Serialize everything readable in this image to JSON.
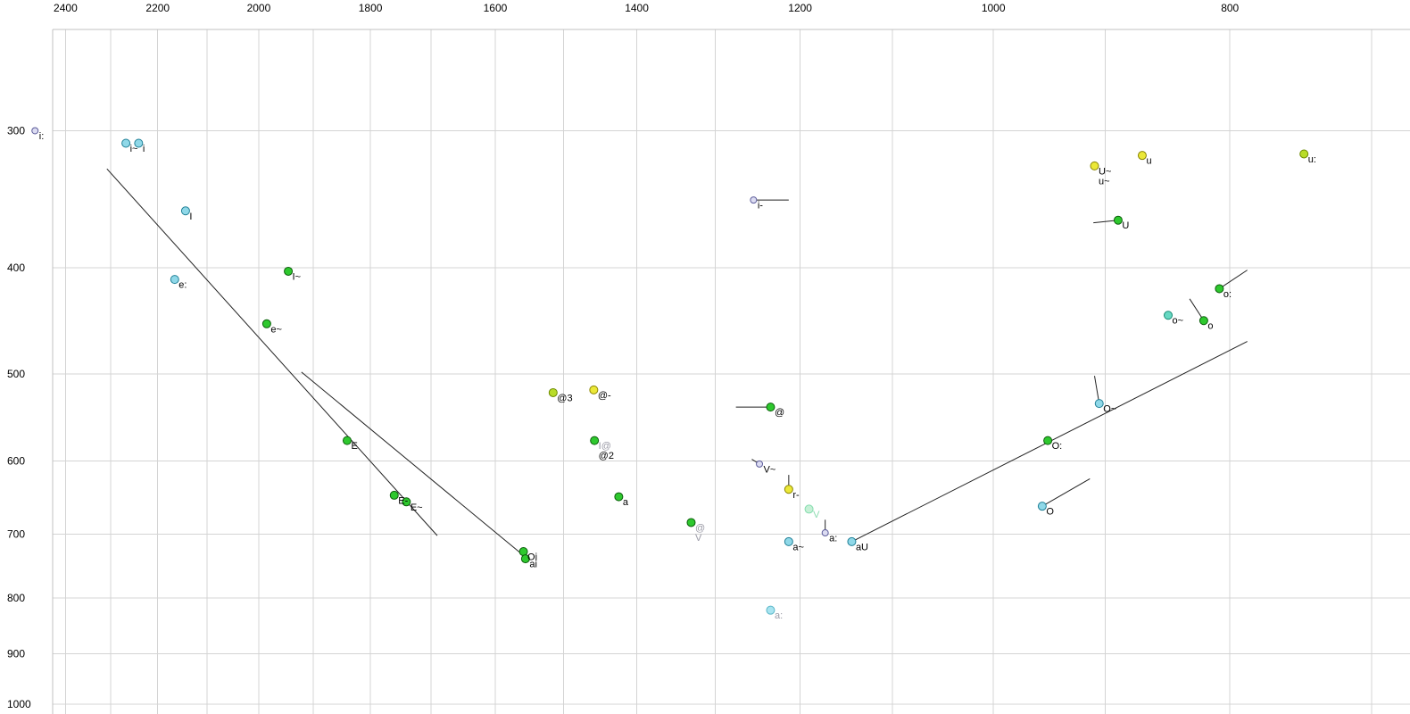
{
  "chart_data": {
    "type": "scatter",
    "title": "",
    "xlabel": "",
    "ylabel": "",
    "x_axis": {
      "unit": "Hz",
      "scale": "log",
      "reversed": true,
      "domain": [
        2553,
        675
      ],
      "tick_labels": [
        2400,
        2200,
        2000,
        1800,
        1600,
        1400,
        1200,
        1000,
        800
      ],
      "gridlines_from": 2400,
      "gridlines_to": 700,
      "gridline_step_hz": 100
    },
    "y_axis": {
      "unit": "Hz",
      "scale": "log",
      "reversed": true,
      "domain": [
        228,
        1021
      ],
      "tick_labels": [
        300,
        400,
        500,
        600,
        700,
        800,
        900,
        1000
      ]
    },
    "colors": {
      "background": "#ffffff",
      "grid": "#d4d4d4",
      "frame": "#c0c0c0",
      "line": "#222222",
      "tick_text": "#000000"
    },
    "label_colors": {
      "black": "#000000",
      "gray": "#9a9aa6",
      "palegreen": "#8edcb2"
    },
    "palette": {
      "green": {
        "fill": "#2ec82e",
        "stroke": "#0b5e0b"
      },
      "cyan": {
        "fill": "#8fd8e8",
        "stroke": "#1f7f96"
      },
      "yellow": {
        "fill": "#ebe838",
        "stroke": "#8a8400"
      },
      "yellowgreen": {
        "fill": "#b8dc28",
        "stroke": "#6d8a00"
      },
      "grayblue": {
        "fill": "#dcdcf2",
        "stroke": "#5c5c9a"
      },
      "palegreen": {
        "fill": "#c6f0d6",
        "stroke": "#84dcae"
      },
      "lightcyan": {
        "fill": "#a8e4f0",
        "stroke": "#5ab6c8"
      },
      "teal": {
        "fill": "#66d8c2",
        "stroke": "#188a74"
      }
    },
    "points": [
      {
        "id": "i-long",
        "f2": 2470,
        "f1": 300,
        "color": "grayblue",
        "size": "small",
        "labels": [
          {
            "t": "i:",
            "c": "black"
          }
        ]
      },
      {
        "id": "i-nasal",
        "f2": 2267,
        "f1": 308,
        "color": "cyan",
        "size": "normal",
        "labels": [
          {
            "t": "i~",
            "c": "black"
          }
        ]
      },
      {
        "id": "i",
        "f2": 2240,
        "f1": 308,
        "color": "cyan",
        "size": "normal",
        "labels": [
          {
            "t": "i",
            "c": "black"
          }
        ]
      },
      {
        "id": "I",
        "f2": 2143,
        "f1": 355,
        "color": "cyan",
        "size": "normal",
        "labels": [
          {
            "t": "I",
            "c": "black"
          }
        ]
      },
      {
        "id": "e-long",
        "f2": 2165,
        "f1": 410,
        "color": "cyan",
        "size": "normal",
        "labels": [
          {
            "t": "e:",
            "c": "black"
          }
        ]
      },
      {
        "id": "I-nasal",
        "f2": 1945,
        "f1": 403,
        "color": "green",
        "size": "normal",
        "labels": [
          {
            "t": "I~",
            "c": "black"
          }
        ]
      },
      {
        "id": "e-nasal",
        "f2": 1985,
        "f1": 450,
        "color": "green",
        "size": "normal",
        "labels": [
          {
            "t": "e~",
            "c": "black"
          }
        ]
      },
      {
        "id": "E",
        "f2": 1840,
        "f1": 575,
        "color": "green",
        "size": "normal",
        "labels": [
          {
            "t": "E",
            "c": "black"
          }
        ]
      },
      {
        "id": "E-bar",
        "f2": 1760,
        "f1": 645,
        "color": "green",
        "size": "normal",
        "labels": [
          {
            "t": "E-",
            "c": "black"
          }
        ]
      },
      {
        "id": "E-nasal",
        "f2": 1740,
        "f1": 654,
        "color": "green",
        "size": "normal",
        "labels": [
          {
            "t": "E~",
            "c": "black"
          }
        ]
      },
      {
        "id": "Oi",
        "f2": 1558,
        "f1": 726,
        "color": "green",
        "size": "normal",
        "labels": [
          {
            "t": "Oi",
            "c": "black"
          }
        ]
      },
      {
        "id": "ai",
        "f2": 1555,
        "f1": 737,
        "color": "green",
        "size": "normal",
        "labels": [
          {
            "t": "ai",
            "c": "black"
          }
        ]
      },
      {
        "id": "schwa3",
        "f2": 1515,
        "f1": 520,
        "color": "yellowgreen",
        "size": "normal",
        "labels": [
          {
            "t": "@3",
            "c": "black"
          }
        ]
      },
      {
        "id": "schwa-bar",
        "f2": 1458,
        "f1": 517,
        "color": "yellow",
        "size": "normal",
        "labels": [
          {
            "t": "@-",
            "c": "black"
          }
        ]
      },
      {
        "id": "schwa2",
        "f2": 1457,
        "f1": 575,
        "color": "green",
        "size": "normal",
        "labels": [
          {
            "t": "I@",
            "c": "gray"
          },
          {
            "t": "@2",
            "c": "black"
          }
        ]
      },
      {
        "id": "a",
        "f2": 1424,
        "f1": 647,
        "color": "green",
        "size": "normal",
        "labels": [
          {
            "t": "a",
            "c": "black"
          }
        ]
      },
      {
        "id": "schwa-V",
        "f2": 1330,
        "f1": 683,
        "color": "green",
        "size": "normal",
        "labels": [
          {
            "t": "@",
            "c": "gray"
          },
          {
            "t": "V",
            "c": "gray"
          }
        ]
      },
      {
        "id": "i-bar",
        "f2": 1254,
        "f1": 347,
        "color": "grayblue",
        "size": "small",
        "labels": [
          {
            "t": "i-",
            "c": "black"
          }
        ],
        "tail": [
          1213,
          347
        ]
      },
      {
        "id": "schwa",
        "f2": 1234,
        "f1": 536,
        "color": "green",
        "size": "normal",
        "labels": [
          {
            "t": "@",
            "c": "black"
          }
        ],
        "tail": [
          1275,
          536
        ]
      },
      {
        "id": "V-nasal",
        "f2": 1247,
        "f1": 604,
        "color": "grayblue",
        "size": "small",
        "labels": [
          {
            "t": "V~",
            "c": "black"
          }
        ],
        "tail": [
          1256,
          598
        ]
      },
      {
        "id": "r-bar",
        "f2": 1213,
        "f1": 637,
        "color": "yellow",
        "size": "normal",
        "labels": [
          {
            "t": "r-",
            "c": "black"
          }
        ],
        "tail": [
          1213,
          618
        ]
      },
      {
        "id": "V-pale",
        "f2": 1190,
        "f1": 664,
        "color": "palegreen",
        "size": "normal",
        "labels": [
          {
            "t": "V",
            "c": "palegreen"
          }
        ]
      },
      {
        "id": "a-long-mid",
        "f2": 1172,
        "f1": 698,
        "color": "grayblue",
        "size": "small",
        "labels": [
          {
            "t": "a:",
            "c": "black"
          }
        ],
        "tail": [
          1172,
          679
        ]
      },
      {
        "id": "a-nasal",
        "f2": 1213,
        "f1": 711,
        "color": "cyan",
        "size": "normal",
        "labels": [
          {
            "t": "a~",
            "c": "black"
          }
        ]
      },
      {
        "id": "aU",
        "f2": 1143,
        "f1": 711,
        "color": "cyan",
        "size": "normal",
        "labels": [
          {
            "t": "aU",
            "c": "black"
          }
        ]
      },
      {
        "id": "a-long-low",
        "f2": 1234,
        "f1": 821,
        "color": "lightcyan",
        "size": "normal",
        "labels": [
          {
            "t": "a:",
            "c": "gray"
          }
        ]
      },
      {
        "id": "U-nasal",
        "f2": 909,
        "f1": 323,
        "color": "yellow",
        "size": "normal",
        "labels": [
          {
            "t": "U~",
            "c": "black"
          },
          {
            "t": "u~",
            "c": "black"
          }
        ]
      },
      {
        "id": "u",
        "f2": 869,
        "f1": 316,
        "color": "yellow",
        "size": "normal",
        "labels": [
          {
            "t": "u",
            "c": "black"
          }
        ]
      },
      {
        "id": "u-long",
        "f2": 746,
        "f1": 315,
        "color": "yellowgreen",
        "size": "normal",
        "labels": [
          {
            "t": "u:",
            "c": "black"
          }
        ]
      },
      {
        "id": "U",
        "f2": 889,
        "f1": 362,
        "color": "green",
        "size": "normal",
        "labels": [
          {
            "t": "U",
            "c": "black"
          }
        ],
        "tail": [
          910,
          364
        ]
      },
      {
        "id": "o-long",
        "f2": 808,
        "f1": 418,
        "color": "green",
        "size": "normal",
        "labels": [
          {
            "t": "o:",
            "c": "black"
          }
        ],
        "tail": [
          787,
          402
        ]
      },
      {
        "id": "o-nasal",
        "f2": 848,
        "f1": 442,
        "color": "teal",
        "size": "normal",
        "labels": [
          {
            "t": "o~",
            "c": "black"
          }
        ]
      },
      {
        "id": "o",
        "f2": 820,
        "f1": 447,
        "color": "green",
        "size": "normal",
        "labels": [
          {
            "t": "o",
            "c": "black"
          }
        ],
        "tail": [
          831,
          427
        ]
      },
      {
        "id": "O-nasal",
        "f2": 905,
        "f1": 532,
        "color": "cyan",
        "size": "normal",
        "labels": [
          {
            "t": "O~",
            "c": "black"
          }
        ],
        "tail": [
          909,
          502
        ]
      },
      {
        "id": "O-long",
        "f2": 950,
        "f1": 575,
        "color": "green",
        "size": "normal",
        "labels": [
          {
            "t": "O:",
            "c": "black"
          }
        ]
      },
      {
        "id": "O",
        "f2": 955,
        "f1": 660,
        "color": "cyan",
        "size": "normal",
        "labels": [
          {
            "t": "O",
            "c": "black"
          }
        ],
        "tail": [
          913,
          623
        ]
      }
    ],
    "segments": [
      {
        "from": [
          2308,
          325
        ],
        "to": [
          1690,
          702
        ]
      },
      {
        "from": [
          1921,
          498
        ],
        "to": [
          1551,
          738
        ]
      },
      {
        "from": [
          1143,
          711
        ],
        "to": [
          787,
          467
        ]
      }
    ]
  }
}
